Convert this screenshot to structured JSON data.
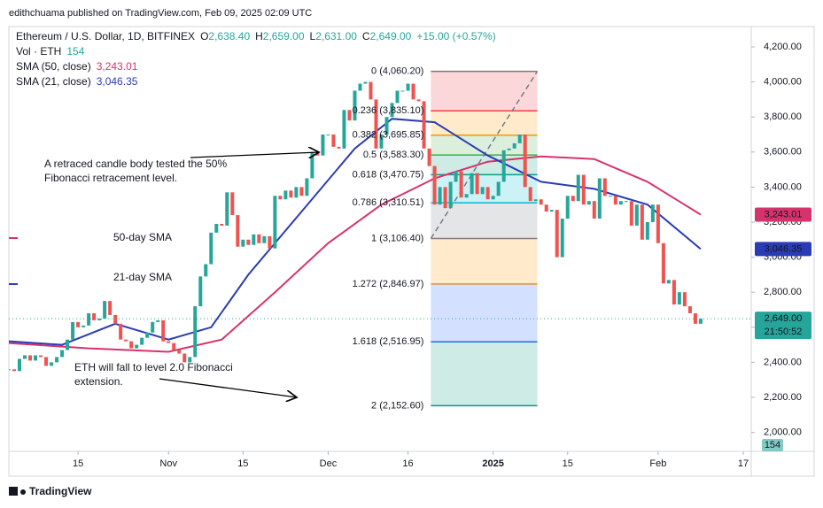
{
  "header": "edithchuama published on TradingView.com, Feb 09, 2025 02:09 UTC",
  "footer": "TradingView",
  "chart_data": {
    "type": "candlestick",
    "title": "Ethereum / U.S. Dollar, 1D, BITFINEX",
    "ohlc": [
      {
        "key": "O",
        "label": "2,638.40"
      },
      {
        "key": "H",
        "label": "2,659.00"
      },
      {
        "key": "L",
        "label": "2,631.00"
      },
      {
        "key": "C",
        "label": "2,649.00"
      }
    ],
    "change": "+15.00 (+0.57%)",
    "volume_name": "Vol · ETH",
    "volume_label": "154",
    "up_color": "#26a69a",
    "down_color": "#ef5350",
    "x": [
      0,
      1,
      2,
      3,
      4,
      5,
      6,
      7,
      8,
      9,
      10,
      11,
      12,
      13,
      14,
      15,
      16,
      17,
      18,
      19,
      20,
      21,
      22,
      23,
      24,
      25,
      26,
      27,
      28,
      29,
      30,
      31,
      32,
      33,
      34,
      35,
      36,
      37,
      38,
      39,
      40,
      41,
      42,
      43,
      44,
      45,
      46,
      47,
      48,
      49,
      50,
      51,
      52,
      53,
      54,
      55,
      56,
      57,
      58,
      59,
      60,
      61,
      62,
      63,
      64,
      65,
      66,
      67,
      68,
      69,
      70,
      71,
      72,
      73,
      74,
      75,
      76,
      77,
      78,
      79,
      80,
      81,
      82,
      83,
      84,
      85,
      86,
      87,
      88,
      89,
      90,
      91,
      92,
      93,
      94,
      95,
      96,
      97,
      98,
      99,
      100,
      101,
      102,
      103,
      104,
      105,
      106,
      107,
      108,
      109,
      110,
      111,
      112,
      113,
      114,
      115,
      116,
      117,
      118,
      119,
      120,
      121,
      122,
      123,
      124,
      125,
      126,
      127,
      128,
      129,
      130
    ],
    "values": [
      2360,
      2350,
      2420,
      2440,
      2410,
      2440,
      2430,
      2380,
      2400,
      2430,
      2470,
      2530,
      2630,
      2600,
      2610,
      2680,
      2640,
      2650,
      2750,
      2670,
      2620,
      2530,
      2520,
      2480,
      2500,
      2540,
      2570,
      2630,
      2640,
      2520,
      2510,
      2470,
      2450,
      2400,
      2430,
      2720,
      2890,
      2960,
      3140,
      3190,
      3180,
      3370,
      3240,
      3060,
      3100,
      3070,
      3130,
      3080,
      3120,
      3050,
      3350,
      3330,
      3380,
      3340,
      3400,
      3350,
      3450,
      3600,
      3580,
      3700,
      3700,
      3630,
      3620,
      3840,
      3780,
      3950,
      3990,
      4000,
      3900,
      3620,
      3700,
      3800,
      3880,
      3950,
      3950,
      3990,
      3900,
      3890,
      3620,
      3520,
      3300,
      3400,
      3280,
      3430,
      3490,
      3340,
      3360,
      3480,
      3360,
      3400,
      3330,
      3350,
      3430,
      3610,
      3620,
      3650,
      3700,
      3400,
      3320,
      3330,
      3300,
      3260,
      3270,
      3000,
      3220,
      3350,
      3320,
      3470,
      3300,
      3320,
      3220,
      3450,
      3350,
      3350,
      3300,
      3320,
      3320,
      3180,
      3300,
      3100,
      3200,
      3300,
      3080,
      2850,
      2870,
      2730,
      2800,
      2720,
      2680,
      2620,
      2649
    ],
    "series": [
      {
        "name": "SMA (50, close)",
        "value_label": "3,243.01",
        "color": "#d6336c",
        "x": [
          0,
          15,
          30,
          40,
          50,
          60,
          70,
          80,
          90,
          100,
          110,
          120,
          130
        ],
        "values": [
          2510,
          2480,
          2460,
          2530,
          2800,
          3080,
          3300,
          3450,
          3545,
          3575,
          3560,
          3430,
          3243.01
        ]
      },
      {
        "name": "SMA (21, close)",
        "value_label": "3,046.35",
        "color": "#2a3cb4",
        "x": [
          0,
          10,
          20,
          30,
          38,
          45,
          55,
          65,
          72,
          80,
          90,
          100,
          110,
          120,
          130
        ],
        "values": [
          2520,
          2500,
          2620,
          2530,
          2600,
          2900,
          3260,
          3620,
          3790,
          3770,
          3580,
          3430,
          3390,
          3300,
          3046.35
        ]
      }
    ],
    "fib": [
      {
        "label": "0 (4,060.20)",
        "value": 4060.2,
        "color": "#787b86"
      },
      {
        "label": "0.236 (3,835.10)",
        "value": 3835.1,
        "color": "#f23645"
      },
      {
        "label": "0.382 (3,695.85)",
        "value": 3695.85,
        "color": "#ff9800"
      },
      {
        "label": "0.5 (3,583.30)",
        "value": 3583.3,
        "color": "#4caf50"
      },
      {
        "label": "0.618 (3,470.75)",
        "value": 3470.75,
        "color": "#089981"
      },
      {
        "label": "0.786 (3,310.51)",
        "value": 3310.51,
        "color": "#00bcd4"
      },
      {
        "label": "1 (3,106.40)",
        "value": 3106.4,
        "color": "#787b86"
      },
      {
        "label": "1.272 (2,846.97)",
        "value": 2846.97,
        "color": "#ff9800"
      },
      {
        "label": "1.618 (2,516.95)",
        "value": 2516.95,
        "color": "#2962ff"
      },
      {
        "label": "2 (2,152.60)",
        "value": 2152.6,
        "color": "#089981"
      }
    ],
    "annotations": {
      "retrace": [
        "A retraced candle body tested the 50%",
        "Fibonacci retracement level."
      ],
      "extension": [
        "ETH will fall to level 2.0 Fibonacci",
        "extension."
      ],
      "sma50": "50-day SMA",
      "sma21": "21-day SMA"
    },
    "last_price_label": "2,649.00",
    "countdown": "21:50:52",
    "xlim": [
      0,
      139
    ],
    "xticks": [
      {
        "value": 13,
        "label": "15"
      },
      {
        "value": 30,
        "label": "Nov"
      },
      {
        "value": 44,
        "label": "15"
      },
      {
        "value": 60,
        "label": "Dec"
      },
      {
        "value": 75,
        "label": "16"
      },
      {
        "value": 91,
        "label": "2025"
      },
      {
        "value": 105,
        "label": "15"
      },
      {
        "value": 122,
        "label": "Feb"
      },
      {
        "value": 138,
        "label": "17"
      }
    ],
    "ylim": [
      1892,
      4316
    ],
    "yticks": [
      {
        "value": 2000,
        "label": "2,000.00"
      },
      {
        "value": 2200,
        "label": "2,200.00"
      },
      {
        "value": 2400,
        "label": "2,400.00"
      },
      {
        "value": 2600,
        "label": "2,600.00"
      },
      {
        "value": 2800,
        "label": "2,800.00"
      },
      {
        "value": 3000,
        "label": "3,000.00"
      },
      {
        "value": 3200,
        "label": "3,200.00"
      },
      {
        "value": 3400,
        "label": "3,400.00"
      },
      {
        "value": 3600,
        "label": "3,600.00"
      },
      {
        "value": 3800,
        "label": "3,800.00"
      },
      {
        "value": 4000,
        "label": "4,000.00"
      },
      {
        "value": 4200,
        "label": "4,200.00"
      }
    ]
  }
}
